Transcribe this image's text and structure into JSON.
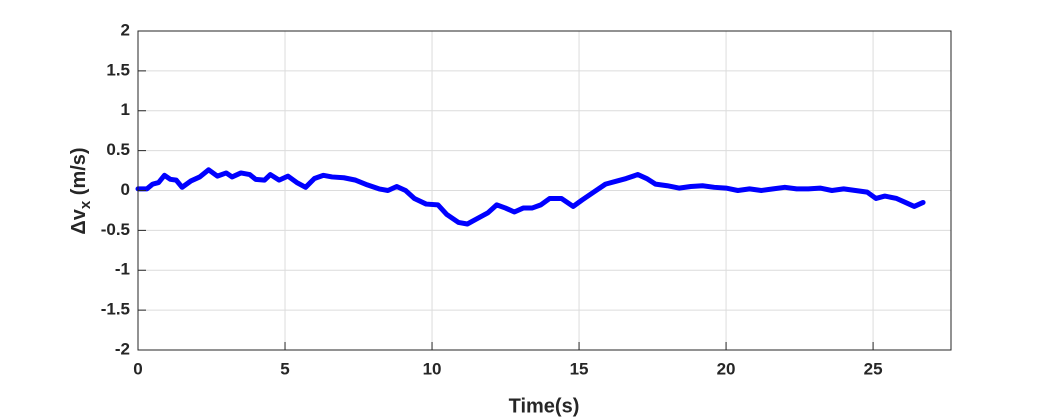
{
  "chart_data": {
    "type": "line",
    "xlabel": "Time(s)",
    "ylabel": [
      "Δv",
      "x",
      " (m/s)"
    ],
    "x": [
      0,
      0.3,
      0.5,
      0.7,
      0.9,
      1.1,
      1.3,
      1.5,
      1.8,
      2.1,
      2.4,
      2.7,
      3.0,
      3.2,
      3.5,
      3.8,
      4.0,
      4.3,
      4.5,
      4.8,
      5.1,
      5.4,
      5.7,
      6.0,
      6.3,
      6.6,
      7.0,
      7.4,
      7.8,
      8.2,
      8.5,
      8.8,
      9.1,
      9.4,
      9.8,
      10.2,
      10.5,
      10.9,
      11.2,
      11.5,
      11.9,
      12.2,
      12.5,
      12.8,
      13.1,
      13.4,
      13.7,
      14.0,
      14.4,
      14.8,
      15.1,
      15.5,
      15.9,
      16.3,
      16.6,
      17.0,
      17.3,
      17.6,
      18.0,
      18.4,
      18.8,
      19.2,
      19.6,
      20.0,
      20.4,
      20.8,
      21.2,
      21.6,
      22.0,
      22.4,
      22.8,
      23.2,
      23.6,
      24.0,
      24.4,
      24.8,
      25.1,
      25.4,
      25.8,
      26.1,
      26.4,
      26.7
    ],
    "series": [
      {
        "color": "#0000ff",
        "values": [
          0.02,
          0.02,
          0.08,
          0.1,
          0.19,
          0.14,
          0.13,
          0.04,
          0.12,
          0.17,
          0.26,
          0.18,
          0.22,
          0.17,
          0.22,
          0.2,
          0.14,
          0.13,
          0.2,
          0.13,
          0.18,
          0.1,
          0.04,
          0.15,
          0.19,
          0.17,
          0.16,
          0.13,
          0.07,
          0.02,
          0.0,
          0.05,
          0.0,
          -0.1,
          -0.17,
          -0.18,
          -0.3,
          -0.4,
          -0.42,
          -0.36,
          -0.28,
          -0.18,
          -0.22,
          -0.27,
          -0.22,
          -0.22,
          -0.18,
          -0.1,
          -0.1,
          -0.2,
          -0.12,
          -0.02,
          0.08,
          0.12,
          0.15,
          0.2,
          0.15,
          0.08,
          0.06,
          0.03,
          0.05,
          0.06,
          0.04,
          0.03,
          0.0,
          0.02,
          0.0,
          0.02,
          0.04,
          0.02,
          0.02,
          0.03,
          0.0,
          0.02,
          0.0,
          -0.02,
          -0.1,
          -0.07,
          -0.1,
          -0.15,
          -0.2,
          -0.15
        ]
      }
    ],
    "xlim": [
      0,
      27.65
    ],
    "xticks": [
      0,
      5,
      10,
      15,
      20,
      25
    ],
    "ylim": [
      -2,
      2
    ],
    "yticks": [
      -2,
      -1.5,
      -1,
      -0.5,
      0,
      0.5,
      1,
      1.5,
      2
    ],
    "grid": true
  }
}
